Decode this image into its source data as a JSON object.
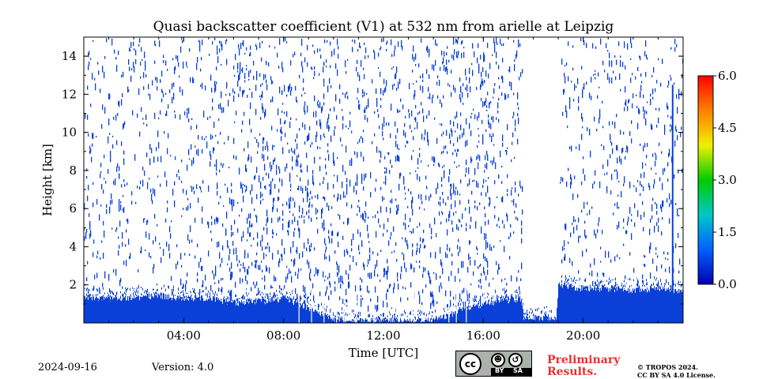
{
  "chart_data": {
    "type": "heatmap",
    "title": "Quasi backscatter coefficient (V1) at 532 nm from arielle at Leipzig",
    "xlabel": "Time [UTC]",
    "ylabel": "Height [km]",
    "xlim_hours": [
      0,
      24
    ],
    "ylim_km": [
      0,
      15
    ],
    "x_ticks": [
      {
        "hour": 4,
        "label": "04:00"
      },
      {
        "hour": 8,
        "label": "08:00"
      },
      {
        "hour": 12,
        "label": "12:00"
      },
      {
        "hour": 16,
        "label": "16:00"
      },
      {
        "hour": 20,
        "label": "20:00"
      }
    ],
    "y_ticks": [
      {
        "value": 2,
        "label": "2"
      },
      {
        "value": 4,
        "label": "4"
      },
      {
        "value": 6,
        "label": "6"
      },
      {
        "value": 8,
        "label": "8"
      },
      {
        "value": 10,
        "label": "10"
      },
      {
        "value": 12,
        "label": "12"
      },
      {
        "value": 14,
        "label": "14"
      }
    ],
    "colorbar": {
      "range": [
        0,
        6
      ],
      "ticks": [
        "0.0",
        "1.5",
        "3.0",
        "4.5",
        "6.0"
      ],
      "colors": [
        "#0000b0",
        "#0060ff",
        "#00c8c8",
        "#00cc00",
        "#f0f000",
        "#ff8000",
        "#ff0000"
      ]
    },
    "signal_color": "#0a40d8",
    "boundary_layer_km": [
      [
        0.0,
        1.35
      ],
      [
        1.0,
        1.3
      ],
      [
        2.0,
        1.35
      ],
      [
        3.0,
        1.4
      ],
      [
        4.0,
        1.3
      ],
      [
        5.0,
        1.3
      ],
      [
        6.0,
        1.05
      ],
      [
        7.0,
        1.1
      ],
      [
        7.5,
        1.2
      ],
      [
        8.0,
        1.3
      ],
      [
        9.0,
        0.8
      ],
      [
        10.0,
        0.2
      ],
      [
        11.0,
        0.1
      ],
      [
        12.0,
        0.1
      ],
      [
        13.0,
        0.1
      ],
      [
        14.0,
        0.1
      ],
      [
        15.0,
        0.6
      ],
      [
        16.0,
        1.0
      ],
      [
        17.0,
        1.2
      ],
      [
        17.5,
        1.25
      ],
      [
        17.6,
        0.3
      ],
      [
        18.9,
        0.3
      ],
      [
        19.0,
        2.0
      ],
      [
        20.0,
        1.8
      ],
      [
        21.0,
        1.8
      ],
      [
        22.0,
        1.7
      ],
      [
        23.0,
        1.8
      ],
      [
        24.0,
        1.7
      ]
    ],
    "sparse_signal_density": [
      [
        0.0,
        0.6
      ],
      [
        3.5,
        0.5
      ],
      [
        6.0,
        0.9
      ],
      [
        8.0,
        1.0
      ],
      [
        11.0,
        0.9
      ],
      [
        13.5,
        1.0
      ],
      [
        17.5,
        0.8
      ],
      [
        17.6,
        0.0
      ],
      [
        19.0,
        0.0
      ],
      [
        19.1,
        0.6
      ],
      [
        24.0,
        0.6
      ]
    ]
  },
  "footer": {
    "date": "2024-09-16",
    "version": "Version: 4.0",
    "preliminary_line1": "Preliminary",
    "preliminary_line2": "Results.",
    "copyright_line1": "© TROPOS 2024.",
    "copyright_line2": "CC BY SA 4.0 License."
  },
  "license_badge": {
    "cc": "cc",
    "by": "BY",
    "sa": "SA"
  }
}
